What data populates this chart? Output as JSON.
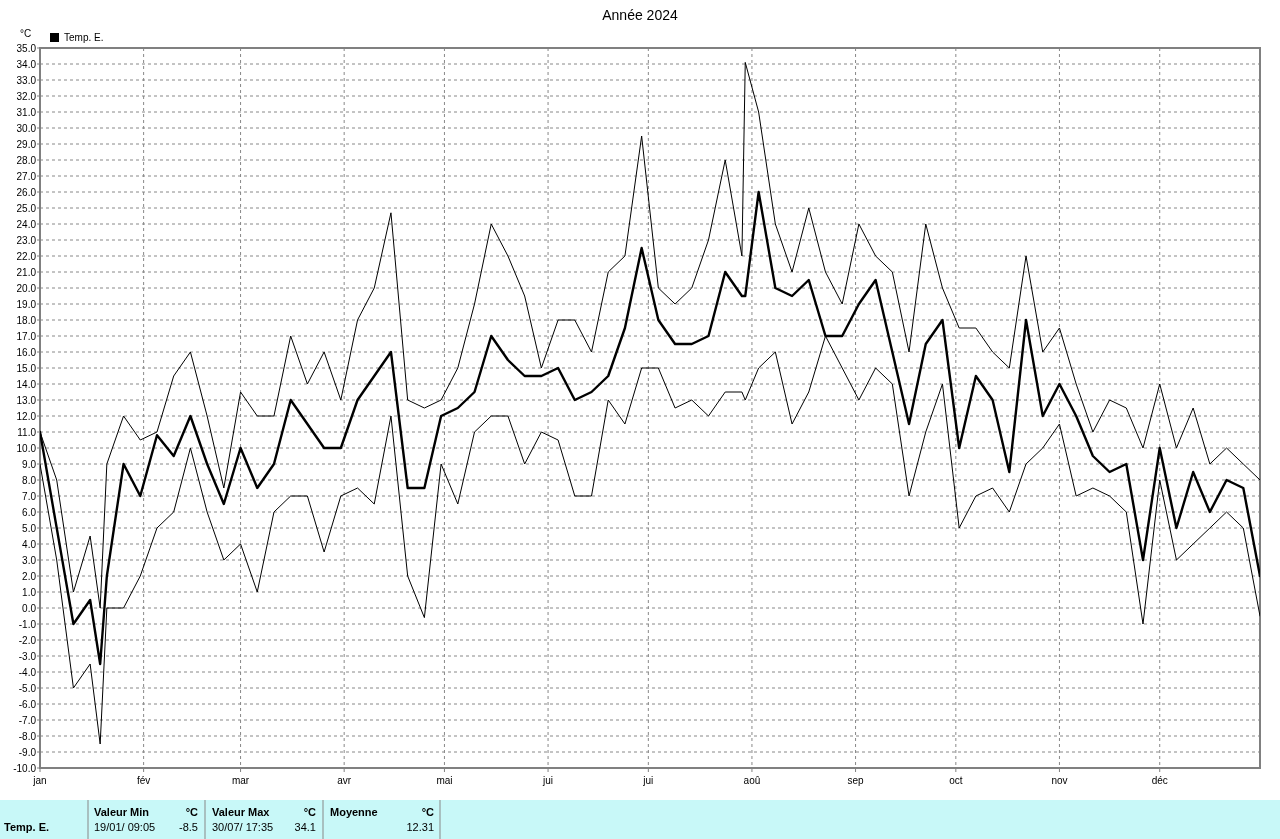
{
  "chart_data": {
    "type": "line",
    "title": "Année 2024",
    "ylabel": "°C",
    "x": [
      "2024-01-01",
      "2024-01-06",
      "2024-01-11",
      "2024-01-16",
      "2024-01-19",
      "2024-01-21",
      "2024-01-26",
      "2024-01-31",
      "2024-02-05",
      "2024-02-10",
      "2024-02-15",
      "2024-02-20",
      "2024-02-25",
      "2024-03-01",
      "2024-03-06",
      "2024-03-11",
      "2024-03-16",
      "2024-03-21",
      "2024-03-26",
      "2024-03-31",
      "2024-04-05",
      "2024-04-10",
      "2024-04-15",
      "2024-04-20",
      "2024-04-25",
      "2024-04-30",
      "2024-05-05",
      "2024-05-10",
      "2024-05-15",
      "2024-05-20",
      "2024-05-25",
      "2024-05-30",
      "2024-06-04",
      "2024-06-09",
      "2024-06-14",
      "2024-06-19",
      "2024-06-24",
      "2024-06-29",
      "2024-07-04",
      "2024-07-09",
      "2024-07-14",
      "2024-07-19",
      "2024-07-24",
      "2024-07-29",
      "2024-07-30",
      "2024-08-03",
      "2024-08-08",
      "2024-08-13",
      "2024-08-18",
      "2024-08-23",
      "2024-08-28",
      "2024-09-02",
      "2024-09-07",
      "2024-09-12",
      "2024-09-17",
      "2024-09-22",
      "2024-09-27",
      "2024-10-02",
      "2024-10-07",
      "2024-10-12",
      "2024-10-17",
      "2024-10-22",
      "2024-10-27",
      "2024-11-01",
      "2024-11-06",
      "2024-11-11",
      "2024-11-16",
      "2024-11-21",
      "2024-11-26",
      "2024-12-01",
      "2024-12-06",
      "2024-12-11",
      "2024-12-16",
      "2024-12-21",
      "2024-12-26",
      "2024-12-31"
    ],
    "series": [
      {
        "color": "#000000",
        "values": [
          11,
          8,
          1,
          4.5,
          0,
          9,
          12,
          10.5,
          11,
          14.5,
          16,
          12,
          7.5,
          13.5,
          12,
          12,
          17,
          14,
          16,
          13,
          18,
          20,
          24.7,
          13,
          12.5,
          13,
          15,
          19,
          24,
          22,
          19.5,
          15,
          18,
          18,
          16,
          21,
          22,
          29.5,
          20,
          19,
          20,
          23,
          28,
          22,
          34.1,
          31,
          24,
          21,
          25,
          21,
          19,
          24,
          22,
          21,
          16,
          24,
          20,
          17.5,
          17.5,
          16,
          15,
          22,
          16,
          17.5,
          14,
          11,
          13,
          12.5,
          10,
          14,
          10,
          12.5,
          9,
          10,
          9,
          8
        ]
      },
      {
        "name": "Temp. E.",
        "color": "#000000",
        "values": [
          11,
          5,
          -1,
          0.5,
          -3.5,
          2,
          9,
          7,
          10.8,
          9.5,
          12,
          9,
          6.5,
          10,
          7.5,
          9,
          13,
          11.5,
          10,
          10,
          13,
          14.5,
          16,
          7.5,
          7.5,
          12,
          12.5,
          13.5,
          17,
          15.5,
          14.5,
          14.5,
          15,
          13,
          13.5,
          14.5,
          17.5,
          22.5,
          18,
          16.5,
          16.5,
          17,
          21,
          19.5,
          19.5,
          26,
          20,
          19.5,
          20.5,
          17,
          17,
          19,
          20.5,
          16,
          11.5,
          16.5,
          18,
          10,
          14.5,
          13,
          8.5,
          18,
          12,
          14,
          12,
          9.5,
          8.5,
          9,
          3,
          10,
          5,
          8.5,
          6,
          8,
          7.5,
          2
        ]
      },
      {
        "color": "#000000",
        "values": [
          9,
          3,
          -5,
          -3.5,
          -8.5,
          0,
          0,
          2,
          5,
          6,
          10,
          6,
          3,
          4,
          1,
          6,
          7,
          7,
          3.5,
          7,
          7.5,
          6.5,
          12,
          2,
          -0.6,
          9,
          6.5,
          11,
          12,
          12,
          9,
          11,
          10.5,
          7,
          7,
          13,
          11.5,
          15,
          15,
          12.5,
          13,
          12,
          13.5,
          13.5,
          13,
          15,
          16,
          11.5,
          13.5,
          17,
          15,
          13,
          15,
          14,
          7,
          11,
          14,
          5,
          7,
          7.5,
          6,
          9,
          10,
          11.5,
          7,
          7.5,
          7,
          6,
          -1,
          8,
          3,
          4,
          5,
          6,
          5,
          -0.5
        ]
      }
    ],
    "xlim": [
      "2024-01-01",
      "2024-12-31"
    ],
    "xticks": [
      {
        "value": "2024-01-01",
        "label": "jan"
      },
      {
        "value": "2024-02-01",
        "label": "fév"
      },
      {
        "value": "2024-03-01",
        "label": "mar"
      },
      {
        "value": "2024-04-01",
        "label": "avr"
      },
      {
        "value": "2024-05-01",
        "label": "mai"
      },
      {
        "value": "2024-06-01",
        "label": "jui"
      },
      {
        "value": "2024-07-01",
        "label": "jui"
      },
      {
        "value": "2024-08-01",
        "label": "aoû"
      },
      {
        "value": "2024-09-01",
        "label": "sep"
      },
      {
        "value": "2024-10-01",
        "label": "oct"
      },
      {
        "value": "2024-11-01",
        "label": "nov"
      },
      {
        "value": "2024-12-01",
        "label": "déc"
      }
    ],
    "ylim": [
      -10,
      35
    ],
    "yticks": [
      {
        "value": -10,
        "label": "-10.0"
      },
      {
        "value": -9,
        "label": "-9.0"
      },
      {
        "value": -8,
        "label": "-8.0"
      },
      {
        "value": -7,
        "label": "-7.0"
      },
      {
        "value": -6,
        "label": "-6.0"
      },
      {
        "value": -5,
        "label": "-5.0"
      },
      {
        "value": -4,
        "label": "-4.0"
      },
      {
        "value": -3,
        "label": "-3.0"
      },
      {
        "value": -2,
        "label": "-2.0"
      },
      {
        "value": -1,
        "label": "-1.0"
      },
      {
        "value": 0,
        "label": "0.0"
      },
      {
        "value": 1,
        "label": "1.0"
      },
      {
        "value": 2,
        "label": "2.0"
      },
      {
        "value": 3,
        "label": "3.0"
      },
      {
        "value": 4,
        "label": "4.0"
      },
      {
        "value": 5,
        "label": "5.0"
      },
      {
        "value": 6,
        "label": "6.0"
      },
      {
        "value": 7,
        "label": "7.0"
      },
      {
        "value": 8,
        "label": "8.0"
      },
      {
        "value": 9,
        "label": "9.0"
      },
      {
        "value": 10,
        "label": "10.0"
      },
      {
        "value": 11,
        "label": "11.0"
      },
      {
        "value": 12,
        "label": "12.0"
      },
      {
        "value": 13,
        "label": "13.0"
      },
      {
        "value": 14,
        "label": "14.0"
      },
      {
        "value": 15,
        "label": "15.0"
      },
      {
        "value": 16,
        "label": "16.0"
      },
      {
        "value": 17,
        "label": "17.0"
      },
      {
        "value": 18,
        "label": "18.0"
      },
      {
        "value": 19,
        "label": "19.0"
      },
      {
        "value": 20,
        "label": "20.0"
      },
      {
        "value": 21,
        "label": "21.0"
      },
      {
        "value": 22,
        "label": "22.0"
      },
      {
        "value": 23,
        "label": "23.0"
      },
      {
        "value": 24,
        "label": "24.0"
      },
      {
        "value": 25,
        "label": "25.0"
      },
      {
        "value": 26,
        "label": "26.0"
      },
      {
        "value": 27,
        "label": "27.0"
      },
      {
        "value": 28,
        "label": "28.0"
      },
      {
        "value": 29,
        "label": "29.0"
      },
      {
        "value": 30,
        "label": "30.0"
      },
      {
        "value": 31,
        "label": "31.0"
      },
      {
        "value": 32,
        "label": "32.0"
      },
      {
        "value": 33,
        "label": "33.0"
      },
      {
        "value": 34,
        "label": "34.0"
      },
      {
        "value": 35,
        "label": "35.0"
      }
    ],
    "grid": true,
    "legend": "top left",
    "marker": "none",
    "line_style": "solid",
    "annotations": [
      "Temp. E.",
      "Valeur Min",
      "°C",
      "19/01/ 09:05",
      "-8.5",
      "Valeur Max",
      "°C",
      "30/07/ 17:35",
      "34.1",
      "Moyenne",
      "°C",
      "12.31"
    ]
  }
}
